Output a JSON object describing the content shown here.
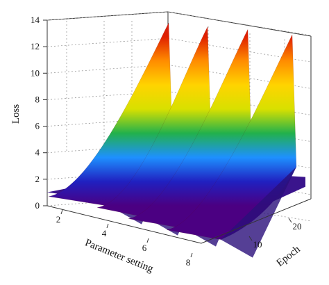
{
  "chart_data": {
    "type": "surface3d",
    "zlabel": "Loss",
    "xlabel": "Parameter setting",
    "ylabel": "Epoch",
    "zlim": [
      0,
      14
    ],
    "z_ticks": [
      "0",
      "2",
      "4",
      "6",
      "8",
      "10",
      "12",
      "14"
    ],
    "x_ticks": [
      "2",
      "4",
      "6",
      "8"
    ],
    "y_ticks": [
      "10",
      "20"
    ],
    "grid": true,
    "colormap": [
      "#4b0082",
      "#2020c0",
      "#1e90ff",
      "#22b14c",
      "#d8e000",
      "#ffd400",
      "#ff8c00",
      "#e02000",
      "#c81e1e"
    ],
    "ridges": [
      {
        "parameter_setting": 2.5,
        "peak_loss": 13.8
      },
      {
        "parameter_setting": 4.5,
        "peak_loss": 13.5
      },
      {
        "parameter_setting": 6.3,
        "peak_loss": 13.3
      },
      {
        "parameter_setting": 8.0,
        "peak_loss": 12.9
      }
    ],
    "base_loss": 0.7
  }
}
